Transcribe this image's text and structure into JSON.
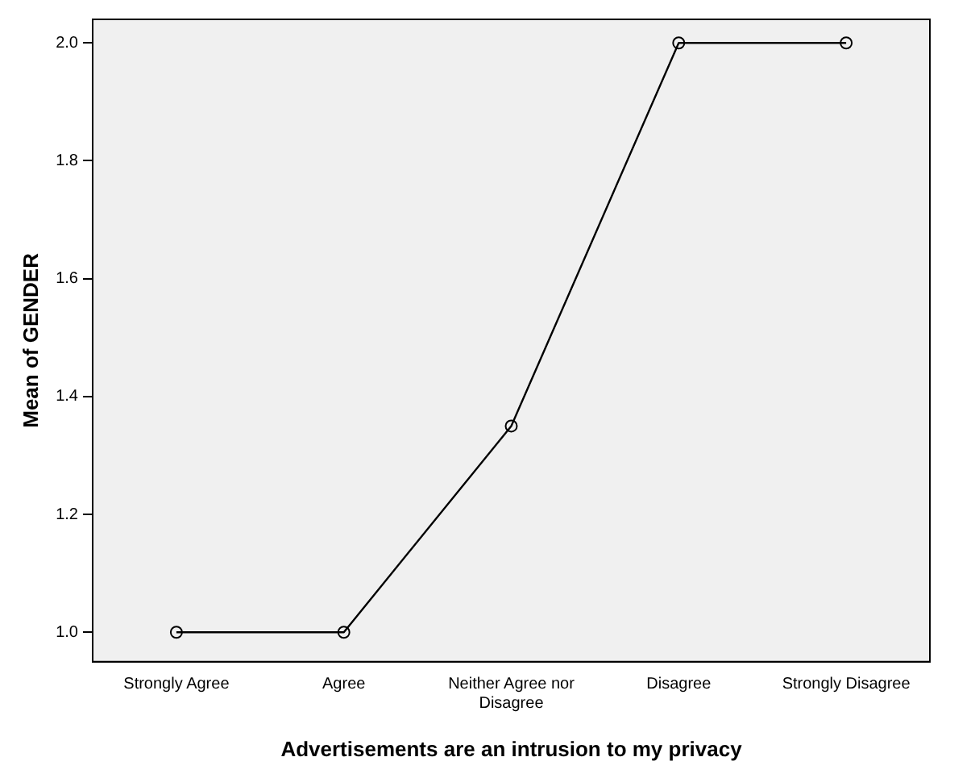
{
  "chart_data": {
    "type": "line",
    "xlabel": "Advertisements are an intrusion to my privacy",
    "ylabel": "Mean of GENDER",
    "categories": [
      "Strongly Agree",
      "Agree",
      "Neither Agree nor Disagree",
      "Disagree",
      "Strongly Disagree"
    ],
    "series": [
      {
        "color": "#000000",
        "values": [
          1.0,
          1.0,
          1.35,
          2.0,
          2.0
        ]
      }
    ],
    "ylim": [
      0.95,
      2.04
    ],
    "yticks": [
      {
        "value": 1.0,
        "label": "1.0"
      },
      1.2,
      1.4,
      1.6,
      1.8,
      {
        "value": 2.0,
        "label": "2.0"
      }
    ],
    "grid": false,
    "legend": false,
    "marker": "circle",
    "line_style": "solid"
  }
}
